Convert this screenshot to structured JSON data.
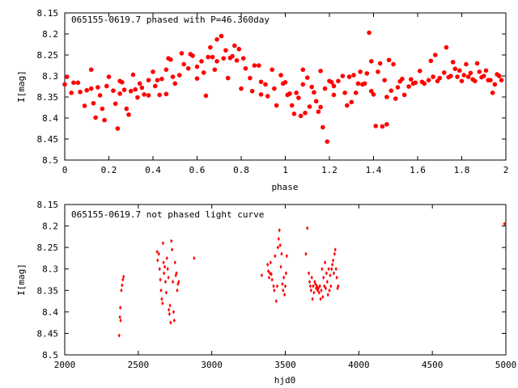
{
  "colors": {
    "marker": "#ff0000",
    "axes": "#000000",
    "background": "#ffffff"
  },
  "chart_data": [
    {
      "type": "scatter",
      "title": "065155-0619.7 phased with P=46.360day",
      "xlabel": "phase",
      "ylabel": "I[mag]",
      "xlim": [
        0,
        2
      ],
      "ylim": [
        8.5,
        8.15
      ],
      "y_inverted": true,
      "xticks": [
        "0",
        "0.2",
        "0.4",
        "0.6",
        "0.8",
        "1",
        "1.2",
        "1.4",
        "1.6",
        "1.8",
        "2"
      ],
      "yticks": [
        "8.15",
        "8.2",
        "8.25",
        "8.3",
        "8.35",
        "8.4",
        "8.45",
        "8.5"
      ],
      "marker": "filled-circle-large",
      "points": [
        [
          0.0,
          8.32
        ],
        [
          0.01,
          8.302
        ],
        [
          0.03,
          8.34
        ],
        [
          0.04,
          8.316
        ],
        [
          0.06,
          8.316
        ],
        [
          0.07,
          8.338
        ],
        [
          0.09,
          8.371
        ],
        [
          0.1,
          8.334
        ],
        [
          0.12,
          8.285
        ],
        [
          0.12,
          8.33
        ],
        [
          0.13,
          8.365
        ],
        [
          0.14,
          8.399
        ],
        [
          0.15,
          8.327
        ],
        [
          0.16,
          8.346
        ],
        [
          0.17,
          8.378
        ],
        [
          0.18,
          8.405
        ],
        [
          0.19,
          8.324
        ],
        [
          0.2,
          8.302
        ],
        [
          0.22,
          8.335
        ],
        [
          0.23,
          8.366
        ],
        [
          0.24,
          8.425
        ],
        [
          0.25,
          8.342
        ],
        [
          0.25,
          8.312
        ],
        [
          0.26,
          8.315
        ],
        [
          0.27,
          8.333
        ],
        [
          0.28,
          8.378
        ],
        [
          0.29,
          8.392
        ],
        [
          0.3,
          8.336
        ],
        [
          0.31,
          8.297
        ],
        [
          0.32,
          8.332
        ],
        [
          0.33,
          8.351
        ],
        [
          0.34,
          8.318
        ],
        [
          0.35,
          8.328
        ],
        [
          0.36,
          8.344
        ],
        [
          0.38,
          8.31
        ],
        [
          0.38,
          8.346
        ],
        [
          0.4,
          8.29
        ],
        [
          0.41,
          8.324
        ],
        [
          0.42,
          8.31
        ],
        [
          0.43,
          8.345
        ],
        [
          0.44,
          8.307
        ],
        [
          0.46,
          8.285
        ],
        [
          0.46,
          8.343
        ],
        [
          0.47,
          8.258
        ],
        [
          0.48,
          8.261
        ],
        [
          0.49,
          8.302
        ],
        [
          0.5,
          8.318
        ],
        [
          0.52,
          8.298
        ],
        [
          0.53,
          8.246
        ],
        [
          0.54,
          8.272
        ],
        [
          0.56,
          8.282
        ],
        [
          0.57,
          8.248
        ],
        [
          0.58,
          8.252
        ],
        [
          0.6,
          8.278
        ],
        [
          0.6,
          8.306
        ],
        [
          0.62,
          8.265
        ],
        [
          0.63,
          8.292
        ],
        [
          0.64,
          8.347
        ],
        [
          0.65,
          8.255
        ],
        [
          0.66,
          8.232
        ],
        [
          0.67,
          8.255
        ],
        [
          0.68,
          8.285
        ],
        [
          0.69,
          8.265
        ],
        [
          0.69,
          8.213
        ],
        [
          0.71,
          8.205
        ],
        [
          0.72,
          8.258
        ],
        [
          0.73,
          8.239
        ],
        [
          0.74,
          8.305
        ],
        [
          0.75,
          8.257
        ],
        [
          0.76,
          8.253
        ],
        [
          0.77,
          8.228
        ],
        [
          0.78,
          8.263
        ],
        [
          0.79,
          8.236
        ],
        [
          0.8,
          8.33
        ],
        [
          0.81,
          8.258
        ],
        [
          0.82,
          8.282
        ],
        [
          0.84,
          8.305
        ],
        [
          0.85,
          8.336
        ],
        [
          0.86,
          8.275
        ],
        [
          0.88,
          8.275
        ],
        [
          0.89,
          8.314
        ],
        [
          0.89,
          8.344
        ],
        [
          0.91,
          8.32
        ],
        [
          0.92,
          8.348
        ],
        [
          0.94,
          8.285
        ],
        [
          0.95,
          8.33
        ],
        [
          0.96,
          8.37
        ],
        [
          0.98,
          8.298
        ],
        [
          0.99,
          8.318
        ],
        [
          1.0,
          8.315
        ],
        [
          1.01,
          8.345
        ],
        [
          1.02,
          8.342
        ],
        [
          1.03,
          8.37
        ],
        [
          1.04,
          8.39
        ],
        [
          1.05,
          8.34
        ],
        [
          1.06,
          8.352
        ],
        [
          1.07,
          8.395
        ],
        [
          1.08,
          8.32
        ],
        [
          1.08,
          8.285
        ],
        [
          1.09,
          8.388
        ],
        [
          1.1,
          8.304
        ],
        [
          1.11,
          8.373
        ],
        [
          1.12,
          8.326
        ],
        [
          1.13,
          8.339
        ],
        [
          1.14,
          8.36
        ],
        [
          1.15,
          8.385
        ],
        [
          1.16,
          8.374
        ],
        [
          1.16,
          8.288
        ],
        [
          1.17,
          8.422
        ],
        [
          1.18,
          8.33
        ],
        [
          1.19,
          8.456
        ],
        [
          1.2,
          8.312
        ],
        [
          1.21,
          8.315
        ],
        [
          1.22,
          8.324
        ],
        [
          1.22,
          8.345
        ],
        [
          1.24,
          8.312
        ],
        [
          1.26,
          8.3
        ],
        [
          1.27,
          8.34
        ],
        [
          1.28,
          8.37
        ],
        [
          1.29,
          8.302
        ],
        [
          1.3,
          8.362
        ],
        [
          1.31,
          8.298
        ],
        [
          1.32,
          8.34
        ],
        [
          1.33,
          8.318
        ],
        [
          1.34,
          8.29
        ],
        [
          1.35,
          8.32
        ],
        [
          1.36,
          8.318
        ],
        [
          1.37,
          8.294
        ],
        [
          1.38,
          8.197
        ],
        [
          1.39,
          8.265
        ],
        [
          1.39,
          8.336
        ],
        [
          1.4,
          8.344
        ],
        [
          1.41,
          8.419
        ],
        [
          1.42,
          8.29
        ],
        [
          1.43,
          8.27
        ],
        [
          1.44,
          8.42
        ],
        [
          1.45,
          8.31
        ],
        [
          1.46,
          8.35
        ],
        [
          1.46,
          8.415
        ],
        [
          1.47,
          8.262
        ],
        [
          1.48,
          8.335
        ],
        [
          1.49,
          8.272
        ],
        [
          1.5,
          8.354
        ],
        [
          1.51,
          8.327
        ],
        [
          1.52,
          8.313
        ],
        [
          1.53,
          8.307
        ],
        [
          1.54,
          8.345
        ],
        [
          1.56,
          8.325
        ],
        [
          1.57,
          8.308
        ],
        [
          1.58,
          8.318
        ],
        [
          1.59,
          8.316
        ],
        [
          1.61,
          8.288
        ],
        [
          1.62,
          8.314
        ],
        [
          1.63,
          8.318
        ],
        [
          1.65,
          8.31
        ],
        [
          1.66,
          8.264
        ],
        [
          1.67,
          8.302
        ],
        [
          1.68,
          8.25
        ],
        [
          1.69,
          8.312
        ],
        [
          1.7,
          8.305
        ],
        [
          1.72,
          8.292
        ],
        [
          1.73,
          8.232
        ],
        [
          1.74,
          8.303
        ],
        [
          1.75,
          8.3
        ],
        [
          1.76,
          8.267
        ],
        [
          1.77,
          8.283
        ],
        [
          1.78,
          8.302
        ],
        [
          1.79,
          8.287
        ],
        [
          1.8,
          8.312
        ],
        [
          1.81,
          8.298
        ],
        [
          1.82,
          8.272
        ],
        [
          1.83,
          8.302
        ],
        [
          1.84,
          8.293
        ],
        [
          1.85,
          8.308
        ],
        [
          1.86,
          8.312
        ],
        [
          1.87,
          8.27
        ],
        [
          1.88,
          8.29
        ],
        [
          1.89,
          8.303
        ],
        [
          1.9,
          8.3
        ],
        [
          1.91,
          8.287
        ],
        [
          1.92,
          8.31
        ],
        [
          1.93,
          8.31
        ],
        [
          1.94,
          8.34
        ],
        [
          1.95,
          8.32
        ],
        [
          1.96,
          8.296
        ],
        [
          1.97,
          8.3
        ],
        [
          1.98,
          8.31
        ]
      ]
    },
    {
      "type": "scatter",
      "title": "065155-0619.7 not phased light curve",
      "xlabel": "hjd0",
      "ylabel": "I[mag]",
      "xlim": [
        2000,
        5000
      ],
      "ylim": [
        8.5,
        8.15
      ],
      "y_inverted": true,
      "xticks": [
        "2000",
        "2500",
        "3000",
        "3500",
        "4000",
        "4500",
        "5000"
      ],
      "yticks": [
        "8.15",
        "8.2",
        "8.25",
        "8.3",
        "8.35",
        "8.4",
        "8.45",
        "8.5"
      ],
      "marker": "small-diamond",
      "points": [
        [
          2370,
          8.455
        ],
        [
          2375,
          8.412
        ],
        [
          2378,
          8.39
        ],
        [
          2380,
          8.42
        ],
        [
          2385,
          8.35
        ],
        [
          2390,
          8.338
        ],
        [
          2395,
          8.325
        ],
        [
          2400,
          8.318
        ],
        [
          2628,
          8.26
        ],
        [
          2632,
          8.28
        ],
        [
          2640,
          8.265
        ],
        [
          2645,
          8.3
        ],
        [
          2650,
          8.325
        ],
        [
          2655,
          8.35
        ],
        [
          2660,
          8.37
        ],
        [
          2665,
          8.38
        ],
        [
          2668,
          8.24
        ],
        [
          2672,
          8.285
        ],
        [
          2675,
          8.31
        ],
        [
          2680,
          8.295
        ],
        [
          2685,
          8.33
        ],
        [
          2690,
          8.355
        ],
        [
          2695,
          8.275
        ],
        [
          2700,
          8.3
        ],
        [
          2705,
          8.32
        ],
        [
          2708,
          8.395
        ],
        [
          2712,
          8.405
        ],
        [
          2716,
          8.385
        ],
        [
          2720,
          8.425
        ],
        [
          2725,
          8.235
        ],
        [
          2730,
          8.255
        ],
        [
          2735,
          8.33
        ],
        [
          2740,
          8.4
        ],
        [
          2745,
          8.42
        ],
        [
          2750,
          8.285
        ],
        [
          2755,
          8.315
        ],
        [
          2760,
          8.31
        ],
        [
          2765,
          8.35
        ],
        [
          2770,
          8.335
        ],
        [
          2775,
          8.33
        ],
        [
          2880,
          8.275
        ],
        [
          3340,
          8.315
        ],
        [
          3380,
          8.29
        ],
        [
          3385,
          8.305
        ],
        [
          3390,
          8.32
        ],
        [
          3395,
          8.31
        ],
        [
          3400,
          8.285
        ],
        [
          3405,
          8.312
        ],
        [
          3410,
          8.325
        ],
        [
          3420,
          8.34
        ],
        [
          3425,
          8.35
        ],
        [
          3430,
          8.27
        ],
        [
          3438,
          8.375
        ],
        [
          3445,
          8.34
        ],
        [
          3450,
          8.25
        ],
        [
          3455,
          8.23
        ],
        [
          3460,
          8.21
        ],
        [
          3465,
          8.245
        ],
        [
          3470,
          8.295
        ],
        [
          3475,
          8.265
        ],
        [
          3480,
          8.335
        ],
        [
          3485,
          8.35
        ],
        [
          3490,
          8.32
        ],
        [
          3495,
          8.36
        ],
        [
          3500,
          8.34
        ],
        [
          3505,
          8.31
        ],
        [
          3510,
          8.27
        ],
        [
          3640,
          8.265
        ],
        [
          3650,
          8.205
        ],
        [
          3660,
          8.31
        ],
        [
          3665,
          8.33
        ],
        [
          3670,
          8.34
        ],
        [
          3675,
          8.35
        ],
        [
          3680,
          8.32
        ],
        [
          3685,
          8.37
        ],
        [
          3690,
          8.34
        ],
        [
          3695,
          8.355
        ],
        [
          3700,
          8.33
        ],
        [
          3705,
          8.335
        ],
        [
          3710,
          8.345
        ],
        [
          3715,
          8.34
        ],
        [
          3720,
          8.35
        ],
        [
          3725,
          8.345
        ],
        [
          3730,
          8.355
        ],
        [
          3735,
          8.34
        ],
        [
          3740,
          8.37
        ],
        [
          3745,
          8.35
        ],
        [
          3750,
          8.3
        ],
        [
          3755,
          8.365
        ],
        [
          3760,
          8.32
        ],
        [
          3765,
          8.34
        ],
        [
          3770,
          8.285
        ],
        [
          3775,
          8.345
        ],
        [
          3780,
          8.31
        ],
        [
          3785,
          8.33
        ],
        [
          3790,
          8.36
        ],
        [
          3795,
          8.3
        ],
        [
          3800,
          8.35
        ],
        [
          3805,
          8.315
        ],
        [
          3810,
          8.34
        ],
        [
          3815,
          8.3
        ],
        [
          3820,
          8.29
        ],
        [
          3825,
          8.28
        ],
        [
          3830,
          8.31
        ],
        [
          3835,
          8.265
        ],
        [
          3840,
          8.255
        ],
        [
          3845,
          8.3
        ],
        [
          3850,
          8.32
        ],
        [
          3855,
          8.345
        ],
        [
          3860,
          8.34
        ],
        [
          4990,
          8.195
        ]
      ]
    }
  ]
}
